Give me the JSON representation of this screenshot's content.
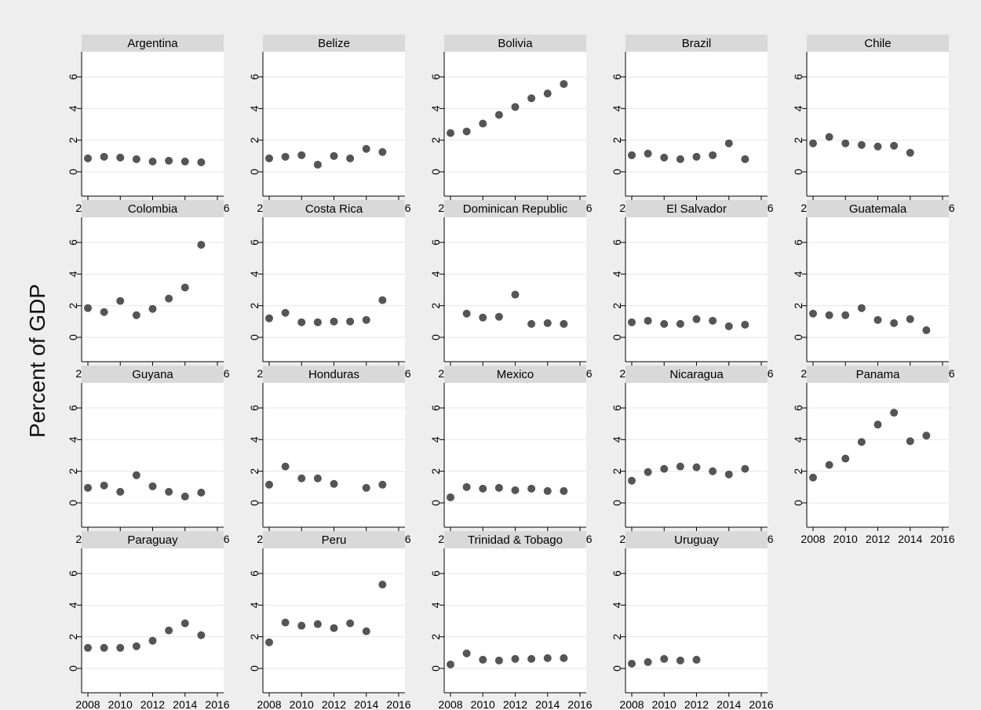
{
  "chart_data": {
    "type": "scatter",
    "ylabel": "Percent of GDP",
    "xlim": [
      2008,
      2016
    ],
    "ylim": [
      0,
      6
    ],
    "x_ticks": [
      2008,
      2010,
      2012,
      2014,
      2016
    ],
    "y_ticks": [
      0,
      2,
      4,
      6
    ],
    "grid": "horizontal",
    "layout": "facet grid, 5 columns",
    "colors": {
      "marker": "#555555",
      "strip": "#d9d9d9",
      "panel": "#ffffff",
      "background": "#eeeeee",
      "grid": "#e6e6e6"
    },
    "panels": [
      {
        "title": "Argentina",
        "x": [
          2008,
          2009,
          2010,
          2011,
          2012,
          2013,
          2014,
          2015
        ],
        "y": [
          0.85,
          0.95,
          0.9,
          0.8,
          0.65,
          0.7,
          0.65,
          0.6
        ]
      },
      {
        "title": "Belize",
        "x": [
          2008,
          2009,
          2010,
          2011,
          2012,
          2013,
          2014,
          2015
        ],
        "y": [
          0.85,
          0.95,
          1.05,
          0.45,
          1.0,
          0.85,
          1.45,
          1.25
        ]
      },
      {
        "title": "Bolivia",
        "x": [
          2008,
          2009,
          2010,
          2011,
          2012,
          2013,
          2014,
          2015
        ],
        "y": [
          2.45,
          2.55,
          3.05,
          3.6,
          4.1,
          4.65,
          4.95,
          5.55
        ]
      },
      {
        "title": "Brazil",
        "x": [
          2008,
          2009,
          2010,
          2011,
          2012,
          2013,
          2014,
          2015
        ],
        "y": [
          1.05,
          1.15,
          0.9,
          0.8,
          0.95,
          1.05,
          1.8,
          0.8
        ]
      },
      {
        "title": "Chile",
        "x": [
          2008,
          2009,
          2010,
          2011,
          2012,
          2013,
          2014
        ],
        "y": [
          1.8,
          2.2,
          1.8,
          1.7,
          1.6,
          1.65,
          1.2
        ]
      },
      {
        "title": "Colombia",
        "x": [
          2008,
          2009,
          2010,
          2011,
          2012,
          2013,
          2014,
          2015
        ],
        "y": [
          1.85,
          1.6,
          2.3,
          1.4,
          1.8,
          2.45,
          3.15,
          5.85
        ]
      },
      {
        "title": "Costa Rica",
        "x": [
          2008,
          2009,
          2010,
          2011,
          2012,
          2013,
          2014,
          2015
        ],
        "y": [
          1.2,
          1.55,
          0.95,
          0.95,
          1.0,
          1.0,
          1.1,
          2.35
        ]
      },
      {
        "title": "Dominican Republic",
        "x": [
          2009,
          2010,
          2011,
          2012,
          2013,
          2014,
          2015
        ],
        "y": [
          1.5,
          1.25,
          1.3,
          2.7,
          0.85,
          0.9,
          0.85
        ]
      },
      {
        "title": "El Salvador",
        "x": [
          2008,
          2009,
          2010,
          2011,
          2012,
          2013,
          2014,
          2015
        ],
        "y": [
          0.95,
          1.05,
          0.85,
          0.85,
          1.15,
          1.05,
          0.7,
          0.8
        ]
      },
      {
        "title": "Guatemala",
        "x": [
          2008,
          2009,
          2010,
          2011,
          2012,
          2013,
          2014,
          2015
        ],
        "y": [
          1.5,
          1.4,
          1.4,
          1.85,
          1.1,
          0.9,
          1.15,
          0.45
        ]
      },
      {
        "title": "Guyana",
        "x": [
          2008,
          2009,
          2010,
          2011,
          2012,
          2013,
          2014,
          2015
        ],
        "y": [
          0.95,
          1.1,
          0.7,
          1.75,
          1.05,
          0.7,
          0.4,
          0.65
        ]
      },
      {
        "title": "Honduras",
        "x": [
          2008,
          2009,
          2010,
          2011,
          2012,
          2014,
          2015
        ],
        "y": [
          1.15,
          2.3,
          1.55,
          1.55,
          1.2,
          0.95,
          1.15
        ]
      },
      {
        "title": "Mexico",
        "x": [
          2008,
          2009,
          2010,
          2011,
          2012,
          2013,
          2014,
          2015
        ],
        "y": [
          0.35,
          1.0,
          0.9,
          0.95,
          0.8,
          0.9,
          0.75,
          0.75
        ]
      },
      {
        "title": "Nicaragua",
        "x": [
          2008,
          2009,
          2010,
          2011,
          2012,
          2013,
          2014,
          2015
        ],
        "y": [
          1.4,
          1.95,
          2.15,
          2.3,
          2.25,
          2.0,
          1.8,
          2.15
        ]
      },
      {
        "title": "Panama",
        "x": [
          2008,
          2009,
          2010,
          2011,
          2012,
          2013,
          2014,
          2015
        ],
        "y": [
          1.6,
          2.4,
          2.8,
          3.85,
          4.95,
          5.7,
          3.9,
          4.25
        ]
      },
      {
        "title": "Paraguay",
        "x": [
          2008,
          2009,
          2010,
          2011,
          2012,
          2013,
          2014,
          2015
        ],
        "y": [
          1.3,
          1.3,
          1.3,
          1.4,
          1.75,
          2.4,
          2.85,
          2.1
        ]
      },
      {
        "title": "Peru",
        "x": [
          2008,
          2009,
          2010,
          2011,
          2012,
          2013,
          2014,
          2015
        ],
        "y": [
          1.65,
          2.9,
          2.7,
          2.8,
          2.55,
          2.85,
          2.35,
          5.3
        ]
      },
      {
        "title": "Trinidad & Tobago",
        "x": [
          2008,
          2009,
          2010,
          2011,
          2012,
          2013,
          2014,
          2015
        ],
        "y": [
          0.25,
          0.95,
          0.55,
          0.5,
          0.6,
          0.6,
          0.65,
          0.65
        ]
      },
      {
        "title": "Uruguay",
        "x": [
          2008,
          2009,
          2010,
          2011,
          2012
        ],
        "y": [
          0.3,
          0.4,
          0.6,
          0.5,
          0.55
        ]
      }
    ]
  }
}
